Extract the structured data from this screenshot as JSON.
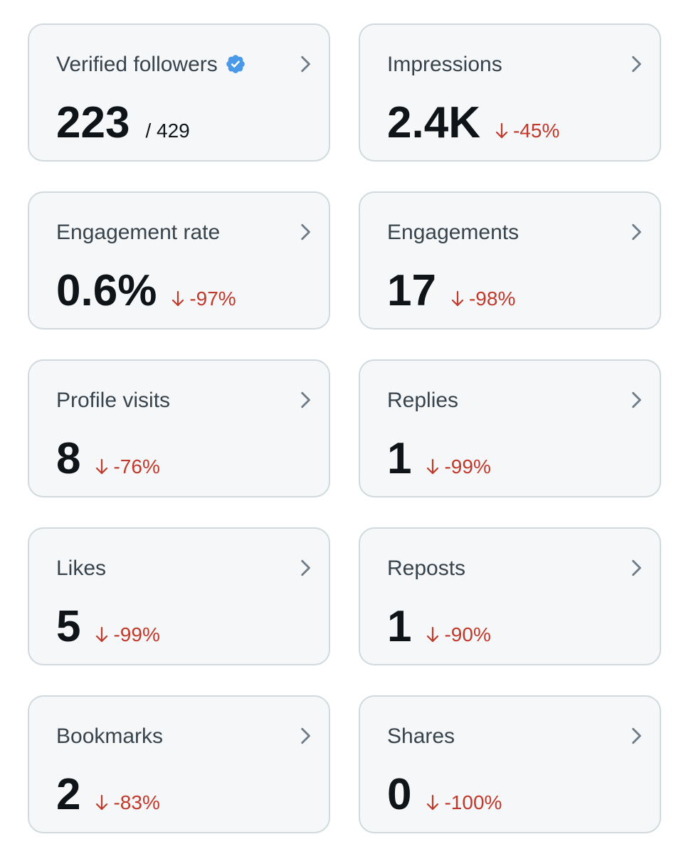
{
  "colors": {
    "card_bg": "#f6f7f8",
    "card_border": "#cfd9de",
    "title": "#38444d",
    "value": "#0f1419",
    "negative": "#c0392b",
    "verified": "#4a99e9"
  },
  "cards": [
    {
      "title": "Verified followers",
      "value": "223",
      "total": "/ 429",
      "icon": "verified-badge-icon"
    },
    {
      "title": "Impressions",
      "value": "2.4K",
      "change": "-45%"
    },
    {
      "title": "Engagement rate",
      "value": "0.6%",
      "change": "-97%"
    },
    {
      "title": "Engagements",
      "value": "17",
      "change": "-98%"
    },
    {
      "title": "Profile visits",
      "value": "8",
      "change": "-76%"
    },
    {
      "title": "Replies",
      "value": "1",
      "change": "-99%"
    },
    {
      "title": "Likes",
      "value": "5",
      "change": "-99%"
    },
    {
      "title": "Reposts",
      "value": "1",
      "change": "-90%"
    },
    {
      "title": "Bookmarks",
      "value": "2",
      "change": "-83%"
    },
    {
      "title": "Shares",
      "value": "0",
      "change": "-100%"
    }
  ]
}
